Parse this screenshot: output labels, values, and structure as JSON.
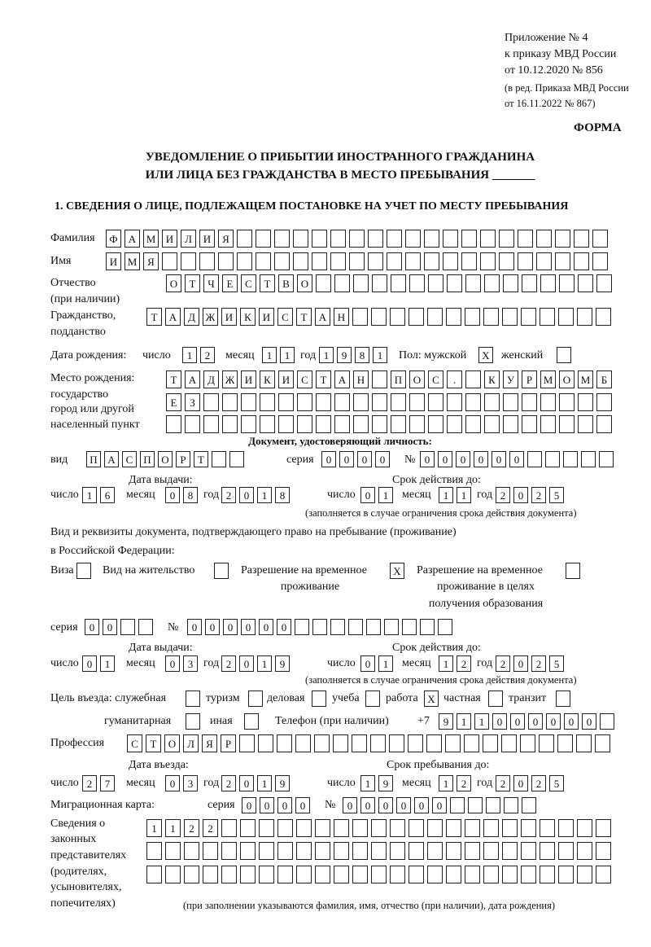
{
  "header": {
    "line1": "Приложение № 4",
    "line2": "к приказу МВД России",
    "line3": "от 10.12.2020 № 856",
    "line4": "(в ред. Приказа МВД России",
    "line5": "от 16.11.2022 № 867)",
    "forma": "ФОРМА"
  },
  "title": {
    "line1": "УВЕДОМЛЕНИЕ О ПРИБЫТИИ ИНОСТРАННОГО ГРАЖДАНИНА",
    "line2": "ИЛИ ЛИЦА БЕЗ ГРАЖДАНСТВА В МЕСТО ПРЕБЫВАНИЯ _______"
  },
  "section1": "1. СВЕДЕНИЯ О ЛИЦЕ, ПОДЛЕЖАЩЕМ ПОСТАНОВКЕ НА УЧЕТ ПО МЕСТУ ПРЕБЫВАНИЯ",
  "labels": {
    "surname": "Фамилия",
    "name": "Имя",
    "patronymic": "Отчество",
    "if_any": "(при наличии)",
    "citizenship": "Гражданство,",
    "subject": "подданство",
    "birth_date": "Дата рождения:",
    "day": "число",
    "month": "месяц",
    "year": "год",
    "sex_male": "Пол: мужской",
    "sex_female": "женский",
    "birth_place": "Место рождения:",
    "state": "государство",
    "city": "город или другой",
    "settlement": "населенный пункт",
    "id_doc": "Документ, удостоверяющий личность:",
    "kind": "вид",
    "series": "серия",
    "number": "№",
    "issue_date": "Дата выдачи:",
    "valid_until": "Срок действия до:",
    "valid_note": "(заполняется в случае ограничения срока действия документа)",
    "stay_doc1": "Вид и реквизиты документа, подтверждающего право на пребывание (проживание)",
    "stay_doc2": "в Российской Федерации:",
    "visa": "Виза",
    "residence": "Вид на жительство",
    "trp1": "Разрешение на временное",
    "trp2": "проживание",
    "trpe1": "Разрешение на временное",
    "trpe2": "проживание в целях",
    "trpe3": "получения образования",
    "purpose": "Цель въезда: служебная",
    "tourism": "туризм",
    "business": "деловая",
    "study": "учеба",
    "work": "работа",
    "private": "частная",
    "transit": "транзит",
    "humanitarian": "гуманитарная",
    "other": "иная",
    "phone": "Телефон (при наличии)",
    "phone_prefix": "+7",
    "profession": "Профессия",
    "entry_date": "Дата въезда:",
    "stay_until": "Срок пребывания до:",
    "migration_card": "Миграционная карта:",
    "legal1": "Сведения о",
    "legal2": "законных",
    "legal3": "представителях",
    "legal4": "(родителях,",
    "legal5": "усыновителях,",
    "legal6": "попечителях)",
    "legal_note": "(при заполнении указываются фамилия, имя, отчество (при наличии), дата рождения)"
  },
  "boxes": {
    "surname": [
      "Ф",
      "А",
      "М",
      "И",
      "Л",
      "И",
      "Я",
      "",
      "",
      "",
      "",
      "",
      "",
      "",
      "",
      "",
      "",
      "",
      "",
      "",
      "",
      "",
      "",
      "",
      "",
      "",
      ""
    ],
    "name": [
      "И",
      "М",
      "Я",
      "",
      "",
      "",
      "",
      "",
      "",
      "",
      "",
      "",
      "",
      "",
      "",
      "",
      "",
      "",
      "",
      "",
      "",
      "",
      "",
      "",
      "",
      "",
      ""
    ],
    "patronymic": [
      "О",
      "Т",
      "Ч",
      "Е",
      "С",
      "Т",
      "В",
      "О",
      "",
      "",
      "",
      "",
      "",
      "",
      "",
      "",
      "",
      "",
      "",
      "",
      "",
      "",
      "",
      ""
    ],
    "citizenship": [
      "Т",
      "А",
      "Д",
      "Ж",
      "И",
      "К",
      "И",
      "С",
      "Т",
      "А",
      "Н",
      "",
      "",
      "",
      "",
      "",
      "",
      "",
      "",
      "",
      "",
      "",
      "",
      "",
      ""
    ],
    "birth_day": [
      "1",
      "2"
    ],
    "birth_month": [
      "1",
      "1"
    ],
    "birth_year": [
      "1",
      "9",
      "8",
      "1"
    ],
    "sex_male": [
      "X"
    ],
    "sex_female": [
      ""
    ],
    "birth_place1": [
      "Т",
      "А",
      "Д",
      "Ж",
      "И",
      "К",
      "И",
      "С",
      "Т",
      "А",
      "Н",
      "",
      "П",
      "О",
      "С",
      ".",
      "",
      "К",
      "У",
      "Р",
      "М",
      "О",
      "М",
      "Б"
    ],
    "birth_place2": [
      "Е",
      "З",
      "",
      "",
      "",
      "",
      "",
      "",
      "",
      "",
      "",
      "",
      "",
      "",
      "",
      "",
      "",
      "",
      "",
      "",
      "",
      "",
      "",
      ""
    ],
    "birth_place3": [
      "",
      "",
      "",
      "",
      "",
      "",
      "",
      "",
      "",
      "",
      "",
      "",
      "",
      "",
      "",
      "",
      "",
      "",
      "",
      "",
      "",
      "",
      "",
      ""
    ],
    "id_kind": [
      "П",
      "А",
      "С",
      "П",
      "О",
      "Р",
      "Т",
      "",
      ""
    ],
    "id_series": [
      "0",
      "0",
      "0",
      "0"
    ],
    "id_number": [
      "0",
      "0",
      "0",
      "0",
      "0",
      "0",
      "",
      "",
      "",
      "",
      ""
    ],
    "id_issue_day": [
      "1",
      "6"
    ],
    "id_issue_month": [
      "0",
      "8"
    ],
    "id_issue_year": [
      "2",
      "0",
      "1",
      "8"
    ],
    "id_valid_day": [
      "0",
      "1"
    ],
    "id_valid_month": [
      "1",
      "1"
    ],
    "id_valid_year": [
      "2",
      "0",
      "2",
      "5"
    ],
    "visa": [
      ""
    ],
    "residence": [
      ""
    ],
    "trp": [
      "X"
    ],
    "trpe": [
      ""
    ],
    "stay_series": [
      "0",
      "0",
      "",
      ""
    ],
    "stay_number": [
      "0",
      "0",
      "0",
      "0",
      "0",
      "0",
      "",
      "",
      "",
      "",
      "",
      "",
      "",
      "",
      ""
    ],
    "stay_issue_day": [
      "0",
      "1"
    ],
    "stay_issue_month": [
      "0",
      "3"
    ],
    "stay_issue_year": [
      "2",
      "0",
      "1",
      "9"
    ],
    "stay_valid_day": [
      "0",
      "1"
    ],
    "stay_valid_month": [
      "1",
      "2"
    ],
    "stay_valid_year": [
      "2",
      "0",
      "2",
      "5"
    ],
    "p_service": [
      ""
    ],
    "p_tourism": [
      ""
    ],
    "p_business": [
      ""
    ],
    "p_study": [
      ""
    ],
    "p_work": [
      "X"
    ],
    "p_private": [
      ""
    ],
    "p_transit": [
      ""
    ],
    "p_humanitarian": [
      ""
    ],
    "p_other": [
      ""
    ],
    "phone": [
      "9",
      "1",
      "1",
      "0",
      "0",
      "0",
      "0",
      "0",
      "0",
      ""
    ],
    "profession": [
      "С",
      "Т",
      "О",
      "Л",
      "Я",
      "Р",
      "",
      "",
      "",
      "",
      "",
      "",
      "",
      "",
      "",
      "",
      "",
      "",
      "",
      "",
      "",
      "",
      "",
      "",
      "",
      ""
    ],
    "entry_day": [
      "2",
      "7"
    ],
    "entry_month": [
      "0",
      "3"
    ],
    "entry_year": [
      "2",
      "0",
      "1",
      "9"
    ],
    "until_day": [
      "1",
      "9"
    ],
    "until_month": [
      "1",
      "2"
    ],
    "until_year": [
      "2",
      "0",
      "2",
      "5"
    ],
    "mc_series": [
      "0",
      "0",
      "0",
      "0"
    ],
    "mc_number": [
      "0",
      "0",
      "0",
      "0",
      "0",
      "0",
      "",
      "",
      "",
      "",
      ""
    ],
    "legal1": [
      "1",
      "1",
      "2",
      "2",
      "",
      "",
      "",
      "",
      "",
      "",
      "",
      "",
      "",
      "",
      "",
      "",
      "",
      "",
      "",
      "",
      "",
      "",
      "",
      "",
      ""
    ],
    "legal2": [
      "",
      "",
      "",
      "",
      "",
      "",
      "",
      "",
      "",
      "",
      "",
      "",
      "",
      "",
      "",
      "",
      "",
      "",
      "",
      "",
      "",
      "",
      "",
      "",
      ""
    ],
    "legal3": [
      "",
      "",
      "",
      "",
      "",
      "",
      "",
      "",
      "",
      "",
      "",
      "",
      "",
      "",
      "",
      "",
      "",
      "",
      "",
      "",
      "",
      "",
      "",
      "",
      ""
    ]
  }
}
